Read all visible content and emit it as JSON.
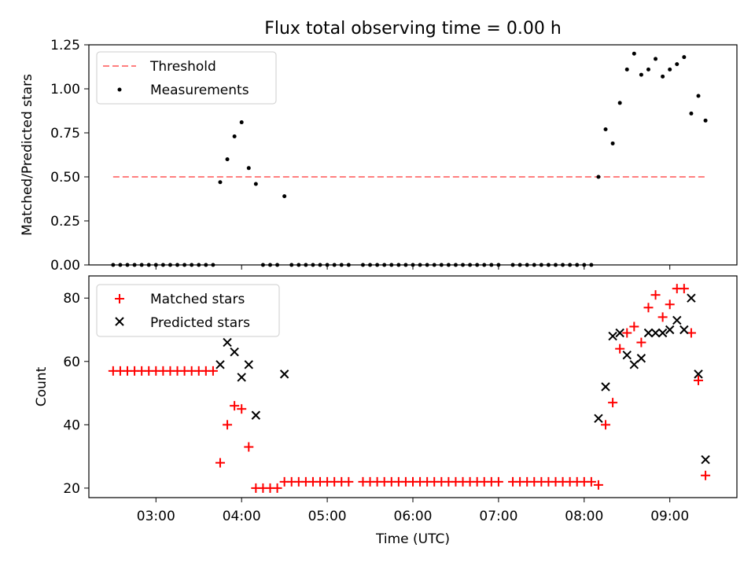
{
  "title": "Flux total observing time = 0.00 h",
  "colors": {
    "threshold": "#ff7f7f",
    "measurements": "#000000",
    "matched": "#ff0000",
    "predicted": "#000000"
  },
  "chart_data": [
    {
      "type": "scatter",
      "ylabel": "Matched/Predicted stars",
      "xlim": [
        "02:13",
        "09:47"
      ],
      "ylim": [
        0,
        1.25
      ],
      "y_ticks": [
        "0.00",
        "0.25",
        "0.50",
        "0.75",
        "1.00",
        "1.25"
      ],
      "legend_position": "top-left",
      "threshold": {
        "name": "Threshold",
        "y": 0.5,
        "x": [
          "02:30",
          "09:25"
        ]
      },
      "series": [
        {
          "name": "Measurements",
          "points": [
            [
              "02:30",
              0
            ],
            [
              "02:35",
              0
            ],
            [
              "02:40",
              0
            ],
            [
              "02:45",
              0
            ],
            [
              "02:50",
              0
            ],
            [
              "02:55",
              0
            ],
            [
              "03:00",
              0
            ],
            [
              "03:05",
              0
            ],
            [
              "03:10",
              0
            ],
            [
              "03:15",
              0
            ],
            [
              "03:20",
              0
            ],
            [
              "03:25",
              0
            ],
            [
              "03:30",
              0
            ],
            [
              "03:35",
              0
            ],
            [
              "03:40",
              0
            ],
            [
              "03:45",
              0.47
            ],
            [
              "03:50",
              0.6
            ],
            [
              "03:55",
              0.73
            ],
            [
              "04:00",
              0.81
            ],
            [
              "04:05",
              0.55
            ],
            [
              "04:10",
              0.46
            ],
            [
              "04:15",
              0
            ],
            [
              "04:20",
              0
            ],
            [
              "04:25",
              0
            ],
            [
              "04:30",
              0.39
            ],
            [
              "04:35",
              0
            ],
            [
              "04:40",
              0
            ],
            [
              "04:45",
              0
            ],
            [
              "04:50",
              0
            ],
            [
              "04:55",
              0
            ],
            [
              "05:00",
              0
            ],
            [
              "05:05",
              0
            ],
            [
              "05:10",
              0
            ],
            [
              "05:15",
              0
            ],
            [
              "05:25",
              0
            ],
            [
              "05:30",
              0
            ],
            [
              "05:35",
              0
            ],
            [
              "05:40",
              0
            ],
            [
              "05:45",
              0
            ],
            [
              "05:50",
              0
            ],
            [
              "05:55",
              0
            ],
            [
              "06:00",
              0
            ],
            [
              "06:05",
              0
            ],
            [
              "06:10",
              0
            ],
            [
              "06:15",
              0
            ],
            [
              "06:20",
              0
            ],
            [
              "06:25",
              0
            ],
            [
              "06:30",
              0
            ],
            [
              "06:35",
              0
            ],
            [
              "06:40",
              0
            ],
            [
              "06:45",
              0
            ],
            [
              "06:50",
              0
            ],
            [
              "06:55",
              0
            ],
            [
              "07:00",
              0
            ],
            [
              "07:10",
              0
            ],
            [
              "07:15",
              0
            ],
            [
              "07:20",
              0
            ],
            [
              "07:25",
              0
            ],
            [
              "07:30",
              0
            ],
            [
              "07:35",
              0
            ],
            [
              "07:40",
              0
            ],
            [
              "07:45",
              0
            ],
            [
              "07:50",
              0
            ],
            [
              "07:55",
              0
            ],
            [
              "08:00",
              0
            ],
            [
              "08:05",
              0
            ],
            [
              "08:10",
              0.5
            ],
            [
              "08:15",
              0.77
            ],
            [
              "08:20",
              0.69
            ],
            [
              "08:25",
              0.92
            ],
            [
              "08:30",
              1.11
            ],
            [
              "08:35",
              1.2
            ],
            [
              "08:40",
              1.08
            ],
            [
              "08:45",
              1.11
            ],
            [
              "08:50",
              1.17
            ],
            [
              "08:55",
              1.07
            ],
            [
              "09:00",
              1.11
            ],
            [
              "09:05",
              1.14
            ],
            [
              "09:10",
              1.18
            ],
            [
              "09:15",
              0.86
            ],
            [
              "09:20",
              0.96
            ],
            [
              "09:25",
              0.82
            ]
          ]
        }
      ]
    },
    {
      "type": "scatter",
      "xlabel": "Time (UTC)",
      "ylabel": "Count",
      "xlim": [
        "02:13",
        "09:47"
      ],
      "ylim": [
        17,
        87
      ],
      "y_ticks": [
        "20",
        "40",
        "60",
        "80"
      ],
      "x_ticks": [
        "03:00",
        "04:00",
        "05:00",
        "06:00",
        "07:00",
        "08:00",
        "09:00"
      ],
      "legend_position": "top-left",
      "series": [
        {
          "name": "Matched stars",
          "points": [
            [
              "02:30",
              57
            ],
            [
              "02:35",
              57
            ],
            [
              "02:40",
              57
            ],
            [
              "02:45",
              57
            ],
            [
              "02:50",
              57
            ],
            [
              "02:55",
              57
            ],
            [
              "03:00",
              57
            ],
            [
              "03:05",
              57
            ],
            [
              "03:10",
              57
            ],
            [
              "03:15",
              57
            ],
            [
              "03:20",
              57
            ],
            [
              "03:25",
              57
            ],
            [
              "03:30",
              57
            ],
            [
              "03:35",
              57
            ],
            [
              "03:40",
              57
            ],
            [
              "03:45",
              28
            ],
            [
              "03:50",
              40
            ],
            [
              "03:55",
              46
            ],
            [
              "04:00",
              45
            ],
            [
              "04:05",
              33
            ],
            [
              "04:10",
              20
            ],
            [
              "04:15",
              20
            ],
            [
              "04:20",
              20
            ],
            [
              "04:25",
              20
            ],
            [
              "04:30",
              22
            ],
            [
              "04:35",
              22
            ],
            [
              "04:40",
              22
            ],
            [
              "04:45",
              22
            ],
            [
              "04:50",
              22
            ],
            [
              "04:55",
              22
            ],
            [
              "05:00",
              22
            ],
            [
              "05:05",
              22
            ],
            [
              "05:10",
              22
            ],
            [
              "05:15",
              22
            ],
            [
              "05:25",
              22
            ],
            [
              "05:30",
              22
            ],
            [
              "05:35",
              22
            ],
            [
              "05:40",
              22
            ],
            [
              "05:45",
              22
            ],
            [
              "05:50",
              22
            ],
            [
              "05:55",
              22
            ],
            [
              "06:00",
              22
            ],
            [
              "06:05",
              22
            ],
            [
              "06:10",
              22
            ],
            [
              "06:15",
              22
            ],
            [
              "06:20",
              22
            ],
            [
              "06:25",
              22
            ],
            [
              "06:30",
              22
            ],
            [
              "06:35",
              22
            ],
            [
              "06:40",
              22
            ],
            [
              "06:45",
              22
            ],
            [
              "06:50",
              22
            ],
            [
              "06:55",
              22
            ],
            [
              "07:00",
              22
            ],
            [
              "07:10",
              22
            ],
            [
              "07:15",
              22
            ],
            [
              "07:20",
              22
            ],
            [
              "07:25",
              22
            ],
            [
              "07:30",
              22
            ],
            [
              "07:35",
              22
            ],
            [
              "07:40",
              22
            ],
            [
              "07:45",
              22
            ],
            [
              "07:50",
              22
            ],
            [
              "07:55",
              22
            ],
            [
              "08:00",
              22
            ],
            [
              "08:05",
              22
            ],
            [
              "08:10",
              21
            ],
            [
              "08:15",
              40
            ],
            [
              "08:20",
              47
            ],
            [
              "08:25",
              64
            ],
            [
              "08:30",
              69
            ],
            [
              "08:35",
              71
            ],
            [
              "08:40",
              66
            ],
            [
              "08:45",
              77
            ],
            [
              "08:50",
              81
            ],
            [
              "08:55",
              74
            ],
            [
              "09:00",
              78
            ],
            [
              "09:05",
              83
            ],
            [
              "09:10",
              83
            ],
            [
              "09:15",
              69
            ],
            [
              "09:20",
              54
            ],
            [
              "09:25",
              24
            ]
          ]
        },
        {
          "name": "Predicted stars",
          "points": [
            [
              "03:45",
              59
            ],
            [
              "03:50",
              66
            ],
            [
              "03:55",
              63
            ],
            [
              "04:00",
              55
            ],
            [
              "04:05",
              59
            ],
            [
              "04:10",
              43
            ],
            [
              "04:30",
              56
            ],
            [
              "08:10",
              42
            ],
            [
              "08:15",
              52
            ],
            [
              "08:20",
              68
            ],
            [
              "08:25",
              69
            ],
            [
              "08:30",
              62
            ],
            [
              "08:35",
              59
            ],
            [
              "08:40",
              61
            ],
            [
              "08:45",
              69
            ],
            [
              "08:50",
              69
            ],
            [
              "08:55",
              69
            ],
            [
              "09:00",
              70
            ],
            [
              "09:05",
              73
            ],
            [
              "09:10",
              70
            ],
            [
              "09:15",
              80
            ],
            [
              "09:20",
              56
            ],
            [
              "09:25",
              29
            ]
          ]
        }
      ]
    }
  ]
}
